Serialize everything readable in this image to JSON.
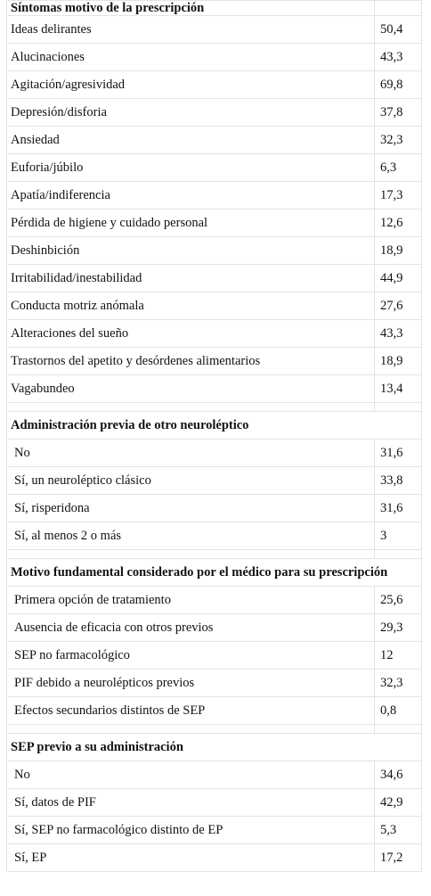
{
  "sections": [
    {
      "title": "Síntomas motivo de la prescripción",
      "rows": [
        {
          "label": "Ideas delirantes",
          "value": "50,4"
        },
        {
          "label": "Alucinaciones",
          "value": "43,3"
        },
        {
          "label": "Agitación/agresividad",
          "value": "69,8"
        },
        {
          "label": "Depresión/disforia",
          "value": "37,8"
        },
        {
          "label": "Ansiedad",
          "value": "32,3"
        },
        {
          "label": "Euforia/júbilo",
          "value": "6,3"
        },
        {
          "label": "Apatía/indiferencia",
          "value": "17,3"
        },
        {
          "label": "Pérdida de higiene y cuidado personal",
          "value": "12,6"
        },
        {
          "label": "Deshinbición",
          "value": "18,9"
        },
        {
          "label": "Irritabilidad/inestabilidad",
          "value": "44,9"
        },
        {
          "label": "Conducta motriz anómala",
          "value": "27,6"
        },
        {
          "label": "Alteraciones del sueño",
          "value": "43,3"
        },
        {
          "label": "Trastornos del apetito y desórdenes alimentarios",
          "value": "18,9"
        },
        {
          "label": "Vagabundeo",
          "value": "13,4"
        }
      ]
    },
    {
      "title": "Administración previa de otro neuroléptico",
      "rows": [
        {
          "label": "No",
          "value": "31,6"
        },
        {
          "label": "Sí, un neuroléptico clásico",
          "value": "33,8"
        },
        {
          "label": "Sí, risperidona",
          "value": "31,6"
        },
        {
          "label": "Sí, al menos 2 o más",
          "value": "3"
        }
      ]
    },
    {
      "title": "Motivo fundamental considerado por el médico para su prescripción",
      "rows": [
        {
          "label": "Primera opción de tratamiento",
          "value": "25,6"
        },
        {
          "label": "Ausencia de eficacia con otros previos",
          "value": "29,3"
        },
        {
          "label": "SEP no farmacológico",
          "value": "12"
        },
        {
          "label": "PIF debido a neurolépticos previos",
          "value": "32,3"
        },
        {
          "label": "Efectos secundarios distintos de SEP",
          "value": "0,8"
        }
      ]
    },
    {
      "title": "SEP previo a su administración",
      "rows": [
        {
          "label": "No",
          "value": "34,6"
        },
        {
          "label": "Sí, datos de PIF",
          "value": "42,9"
        },
        {
          "label": "Sí, SEP no farmacológico distinto de EP",
          "value": "5,3"
        },
        {
          "label": "Sí, EP",
          "value": "17,2"
        }
      ]
    }
  ]
}
